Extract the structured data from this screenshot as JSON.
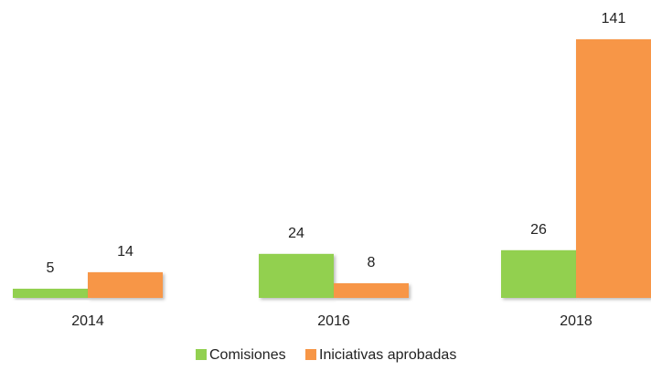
{
  "chart_data": {
    "type": "bar",
    "categories": [
      "2014",
      "2016",
      "2018"
    ],
    "series": [
      {
        "name": "Comisiones",
        "color": "#92d050",
        "values": [
          5,
          24,
          26
        ]
      },
      {
        "name": "Iniciativas aprobadas",
        "color": "#f79646",
        "values": [
          14,
          8,
          141
        ]
      }
    ]
  }
}
